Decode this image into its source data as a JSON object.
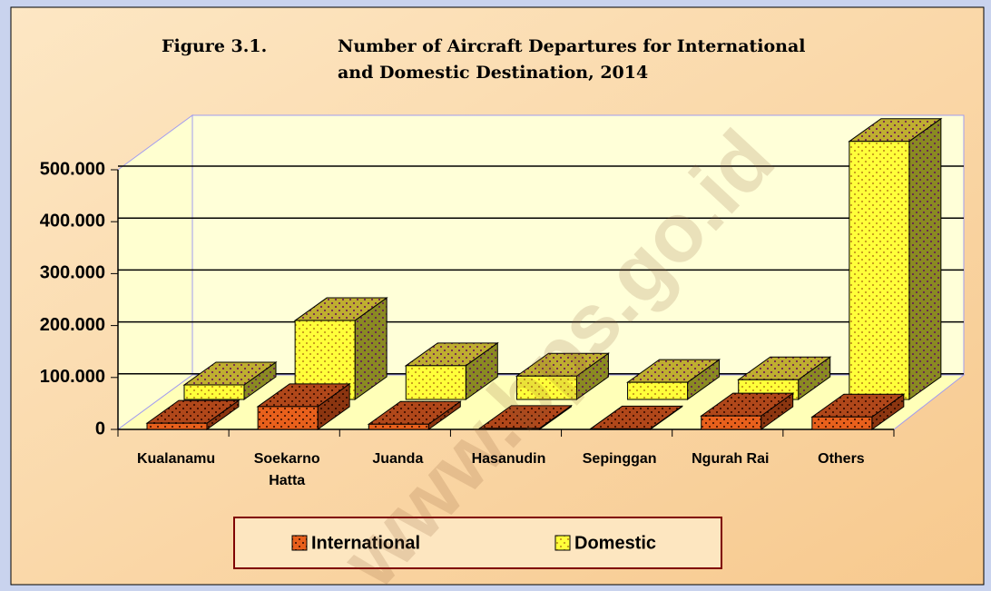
{
  "chart_data": {
    "type": "bar3d",
    "figure_label": "Figure 3.1.",
    "title_lines": [
      "Number of Aircraft Departures for International",
      "and Domestic Destination, 2014"
    ],
    "categories": [
      "Kualanamu",
      "Soekarno Hatta",
      "Juanda",
      "Hasanudin",
      "Sepinggan",
      "Ngurah Rai",
      "Others"
    ],
    "series": [
      {
        "name": "International",
        "color": "#e8601c",
        "values": [
          12000,
          44000,
          10000,
          2000,
          1000,
          26000,
          24000
        ]
      },
      {
        "name": "Domestic",
        "color": "#ffff3a",
        "values": [
          28000,
          152000,
          65000,
          45000,
          33000,
          38000,
          497000
        ]
      }
    ],
    "ylim": [
      0,
      500000
    ],
    "yticks": [
      0,
      {
        "value": 100000,
        "label": "100.000"
      },
      {
        "value": 200000,
        "label": "200.000"
      },
      {
        "value": 300000,
        "label": "300.000"
      },
      {
        "value": 400000,
        "label": "400.000"
      },
      {
        "value": 500000,
        "label": "500.000"
      }
    ],
    "grid": true,
    "legend": "bottom",
    "watermark": "www.bps.go.id"
  }
}
